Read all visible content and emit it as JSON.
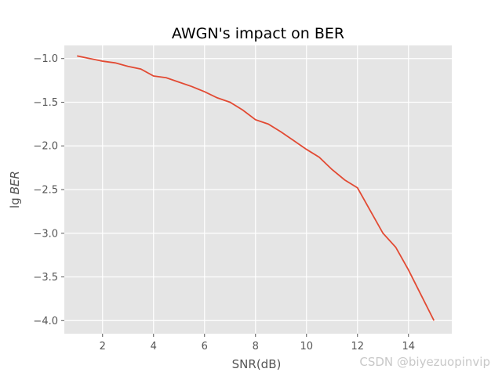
{
  "chart_data": {
    "type": "line",
    "title": "AWGN's impact on BER",
    "xlabel": "SNR(dB)",
    "ylabel_prefix": "lg",
    "ylabel_italic": "BER",
    "xlim": [
      0.5,
      15.7
    ],
    "ylim": [
      -4.15,
      -0.85
    ],
    "xticks": [
      2,
      4,
      6,
      8,
      10,
      12,
      14
    ],
    "xtick_labels": [
      "2",
      "4",
      "6",
      "8",
      "10",
      "12",
      "14"
    ],
    "yticks": [
      -1.0,
      -1.5,
      -2.0,
      -2.5,
      -3.0,
      -3.5,
      -4.0
    ],
    "ytick_labels": [
      "−1.0",
      "−1.5",
      "−2.0",
      "−2.5",
      "−3.0",
      "−3.5",
      "−4.0"
    ],
    "grid": true,
    "style": "ggplot",
    "colors": {
      "background": "#e5e5e5",
      "grid": "#ffffff",
      "line": "#e24a33"
    },
    "series": [
      {
        "x": [
          1,
          1.5,
          2,
          2.5,
          3,
          3.5,
          4,
          4.5,
          5,
          5.5,
          6,
          6.5,
          7,
          7.5,
          8,
          8.5,
          9,
          9.5,
          10,
          10.5,
          11,
          11.5,
          12,
          12.5,
          13,
          13.5,
          14,
          14.5,
          15
        ],
        "y": [
          -0.97,
          -1.0,
          -1.03,
          -1.05,
          -1.09,
          -1.12,
          -1.2,
          -1.22,
          -1.27,
          -1.32,
          -1.38,
          -1.45,
          -1.5,
          -1.59,
          -1.7,
          -1.75,
          -1.84,
          -1.94,
          -2.04,
          -2.13,
          -2.27,
          -2.39,
          -2.48,
          -2.74,
          -3.0,
          -3.16,
          -3.42,
          -3.71,
          -4.0
        ]
      }
    ]
  },
  "watermark": "CSDN @biyezuopinvip"
}
